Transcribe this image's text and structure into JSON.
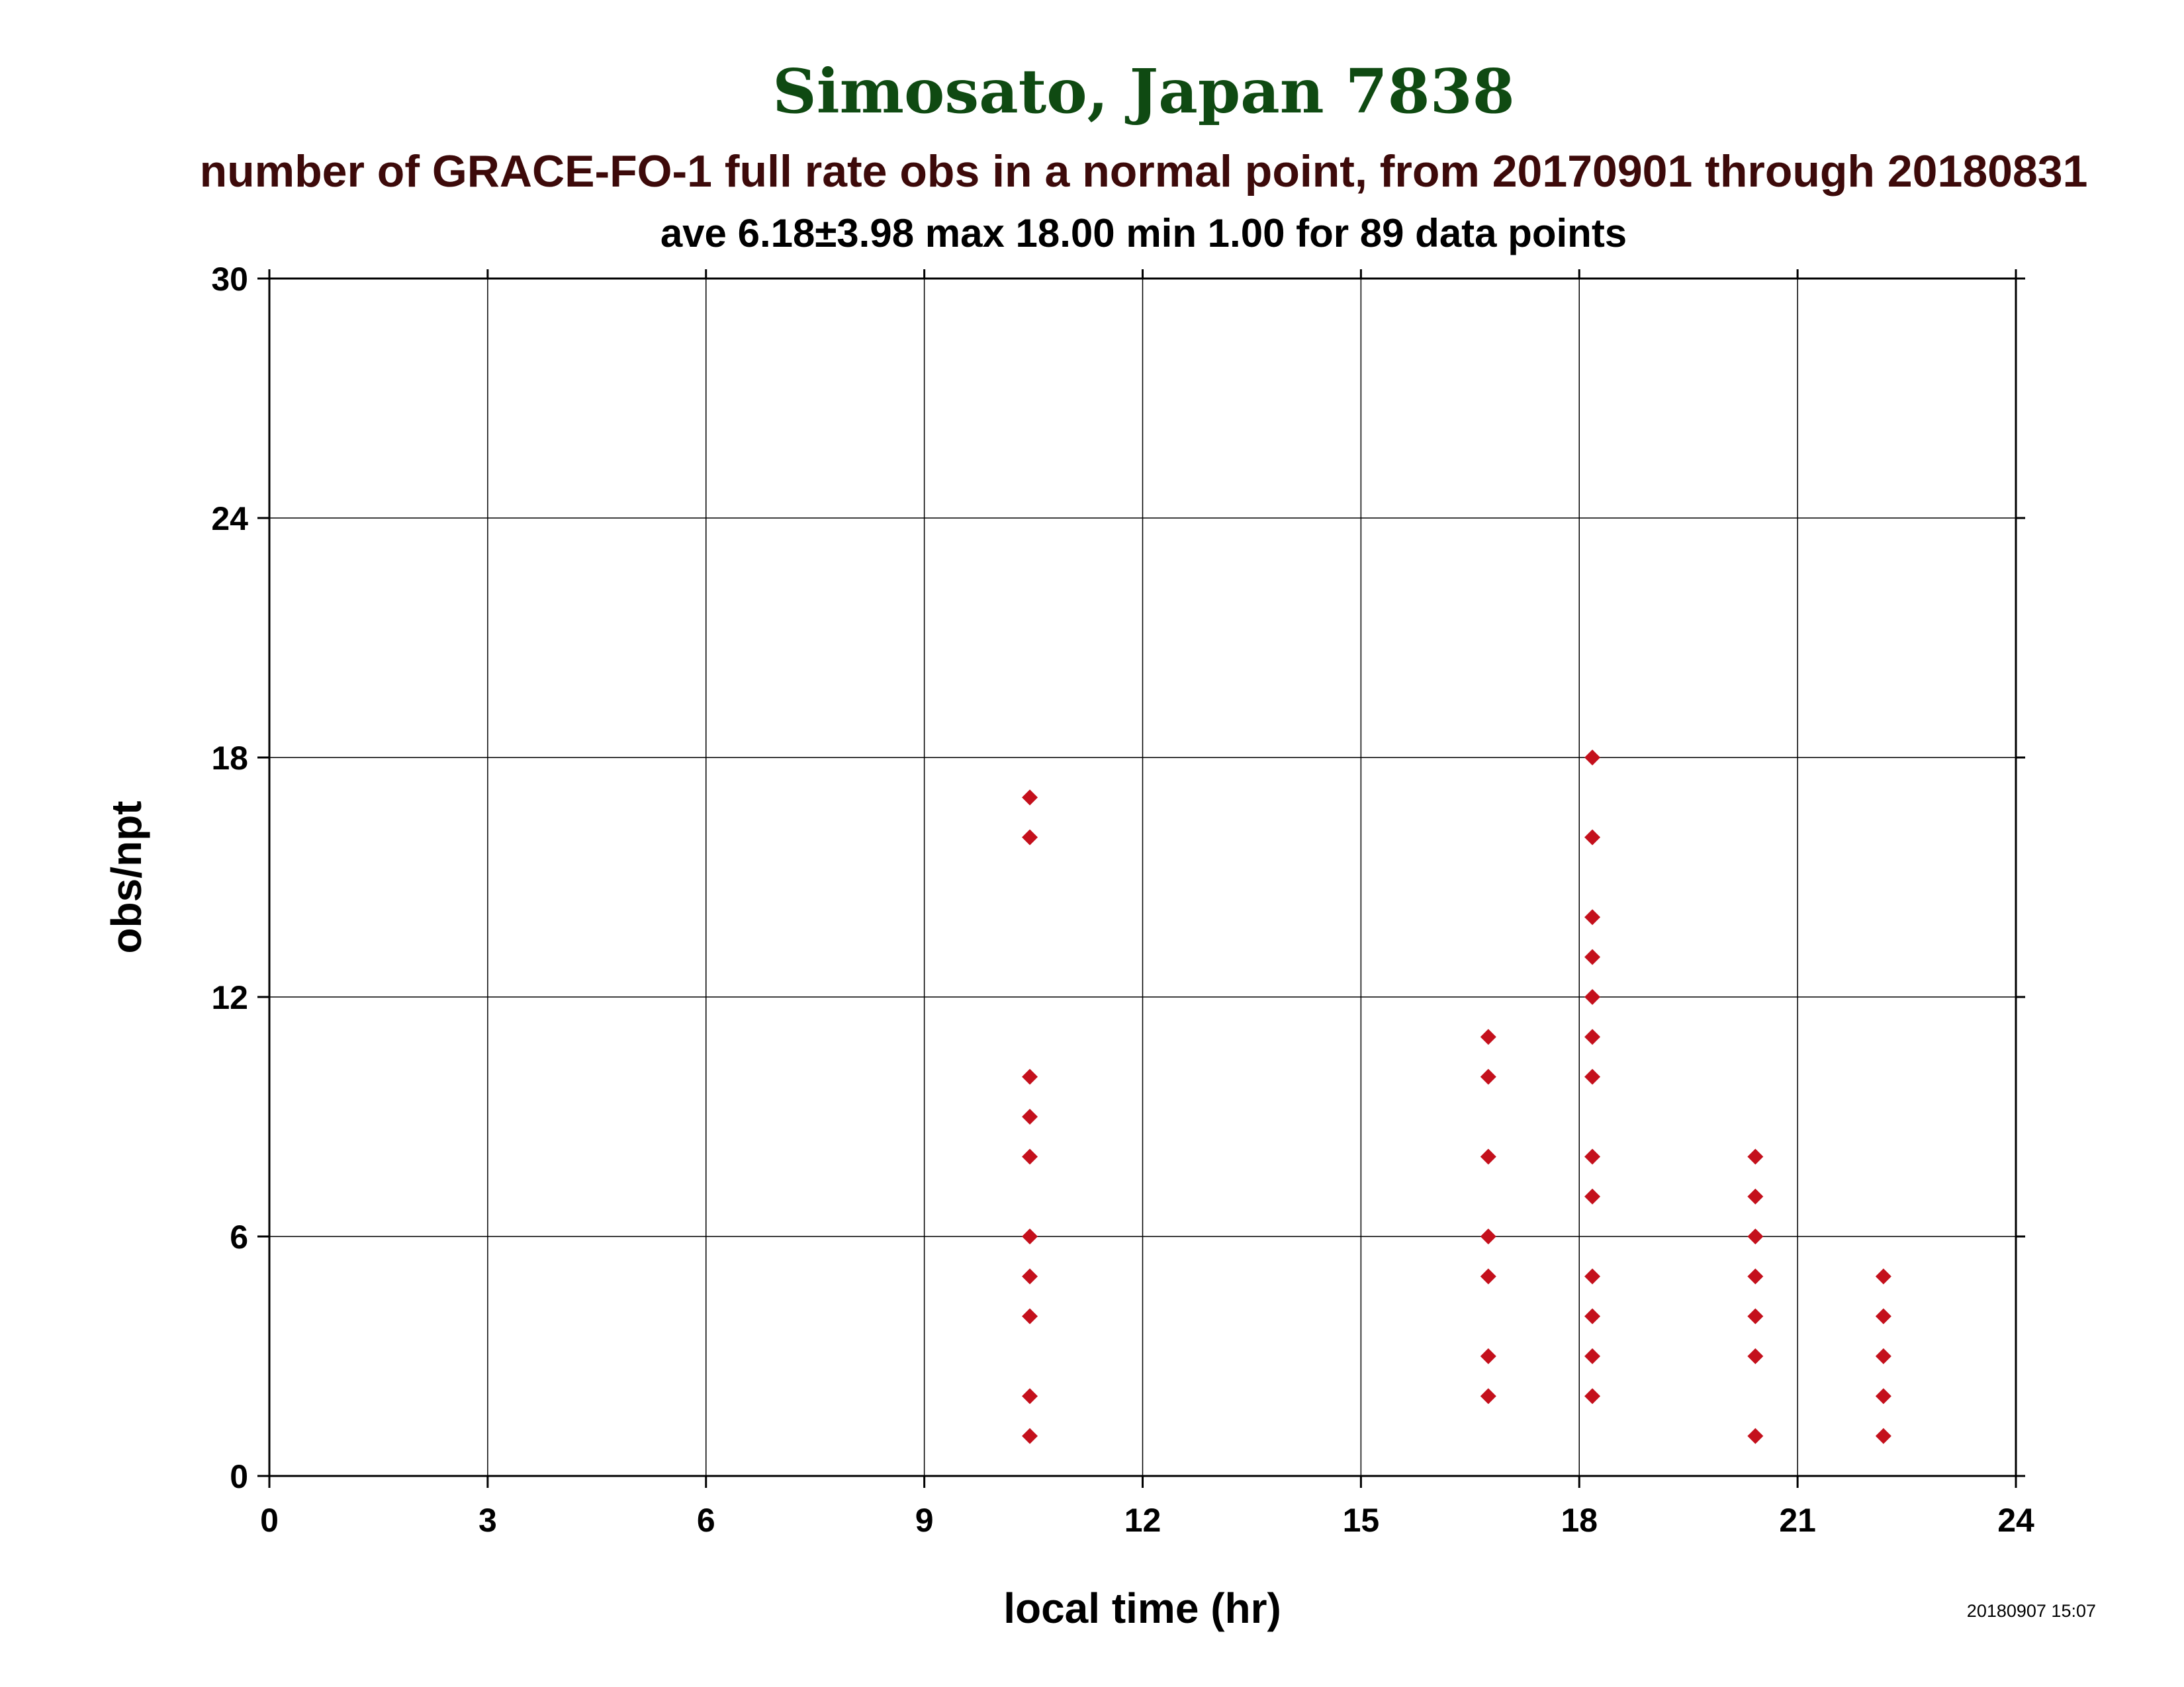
{
  "colors": {
    "title": "#0f4a12",
    "subtitle": "#3d0a0a",
    "text": "#000000",
    "grid": "#000000",
    "marker": "#c4101c"
  },
  "chart_data": {
    "type": "scatter",
    "title": "Simosato, Japan 7838",
    "subtitle": "number of GRACE-FO-1 full rate obs in a normal point, from 20170901 through 20180831",
    "stats": "ave 6.18±3.98 max 18.00 min 1.00 for 89 data points",
    "xlabel": "local time (hr)",
    "ylabel": "obs/npt",
    "xlim": [
      0,
      24
    ],
    "ylim": [
      0,
      30
    ],
    "xticks": [
      "0",
      "3",
      "6",
      "9",
      "12",
      "15",
      "18",
      "21",
      "24"
    ],
    "yticks": [
      "0",
      "6",
      "12",
      "18",
      "24",
      "30"
    ],
    "grid": true,
    "marker": "diamond",
    "timestamp": "20180907 15:07",
    "points": [
      [
        10.45,
        17
      ],
      [
        10.45,
        16
      ],
      [
        10.45,
        10
      ],
      [
        10.45,
        9
      ],
      [
        10.45,
        8
      ],
      [
        10.45,
        6
      ],
      [
        10.45,
        5
      ],
      [
        10.45,
        4
      ],
      [
        10.45,
        2
      ],
      [
        10.45,
        1
      ],
      [
        16.75,
        11
      ],
      [
        16.75,
        10
      ],
      [
        16.75,
        8
      ],
      [
        16.75,
        6
      ],
      [
        16.75,
        5
      ],
      [
        16.75,
        3
      ],
      [
        16.75,
        2
      ],
      [
        18.18,
        18
      ],
      [
        18.18,
        16
      ],
      [
        18.18,
        14
      ],
      [
        18.18,
        13
      ],
      [
        18.18,
        12
      ],
      [
        18.18,
        11
      ],
      [
        18.18,
        10
      ],
      [
        18.18,
        8
      ],
      [
        18.18,
        7
      ],
      [
        18.18,
        5
      ],
      [
        18.18,
        4
      ],
      [
        18.18,
        3
      ],
      [
        18.18,
        2
      ],
      [
        20.42,
        8
      ],
      [
        20.42,
        7
      ],
      [
        20.42,
        6
      ],
      [
        20.42,
        5
      ],
      [
        20.42,
        4
      ],
      [
        20.42,
        3
      ],
      [
        20.42,
        1
      ],
      [
        22.18,
        5
      ],
      [
        22.18,
        4
      ],
      [
        22.18,
        3
      ],
      [
        22.18,
        2
      ],
      [
        22.18,
        1
      ]
    ]
  }
}
